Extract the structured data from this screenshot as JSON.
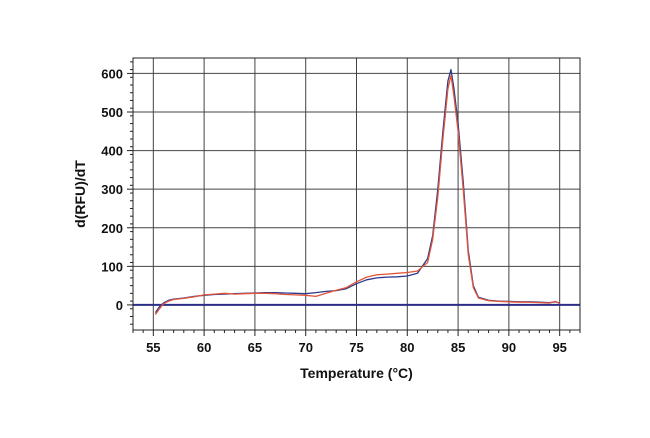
{
  "chart_data": {
    "type": "line",
    "title": "",
    "xlabel": "Temperature (°C)",
    "ylabel": "d(RFU)/dT",
    "xlim": [
      53,
      97
    ],
    "ylim": [
      -65,
      640
    ],
    "xticks": [
      55,
      60,
      65,
      70,
      75,
      80,
      85,
      90,
      95
    ],
    "yticks": [
      0,
      100,
      200,
      300,
      400,
      500,
      600
    ],
    "grid": true,
    "legend": "none",
    "baseline": 0,
    "colors": {
      "baseline": "#2b2f86",
      "grid": "#444444",
      "series1": "#2d3a8c",
      "series2": "#e0553a"
    },
    "series": [
      {
        "x": [
          55.2,
          55.6,
          56,
          56.5,
          57,
          58,
          59,
          60,
          61,
          62,
          63,
          64,
          65,
          66,
          67,
          68,
          69,
          70,
          71,
          72,
          73,
          74,
          75,
          76,
          77,
          78,
          79,
          80,
          81,
          82,
          82.5,
          83,
          83.5,
          84,
          84.3,
          84.6,
          85,
          85.5,
          86,
          86.5,
          87,
          88,
          89,
          90,
          91,
          92,
          93,
          94,
          94.6,
          95
        ],
        "y": [
          -20,
          -5,
          5,
          12,
          15,
          18,
          22,
          25,
          27,
          28,
          29,
          30,
          31,
          32,
          32,
          31,
          30,
          29,
          32,
          35,
          37,
          42,
          55,
          65,
          70,
          72,
          73,
          75,
          82,
          120,
          180,
          300,
          450,
          580,
          610,
          560,
          470,
          320,
          140,
          50,
          20,
          12,
          10,
          9,
          8,
          8,
          7,
          6,
          8,
          5
        ]
      },
      {
        "x": [
          55.2,
          55.6,
          56,
          56.5,
          57,
          58,
          59,
          60,
          61,
          62,
          63,
          64,
          65,
          66,
          67,
          68,
          69,
          70,
          71,
          72,
          73,
          74,
          75,
          76,
          77,
          78,
          79,
          80,
          81,
          82,
          82.5,
          83,
          83.5,
          84,
          84.3,
          84.6,
          85,
          85.5,
          86,
          86.5,
          87,
          88,
          89,
          90,
          91,
          92,
          93,
          94,
          94.6,
          95
        ],
        "y": [
          -25,
          -10,
          3,
          10,
          14,
          17,
          21,
          26,
          28,
          30,
          28,
          29,
          30,
          30,
          29,
          27,
          26,
          25,
          22,
          30,
          38,
          45,
          60,
          72,
          78,
          80,
          82,
          84,
          88,
          110,
          170,
          280,
          430,
          560,
          595,
          540,
          450,
          300,
          130,
          45,
          18,
          11,
          9,
          8,
          7,
          7,
          6,
          5,
          9,
          4
        ]
      }
    ]
  }
}
